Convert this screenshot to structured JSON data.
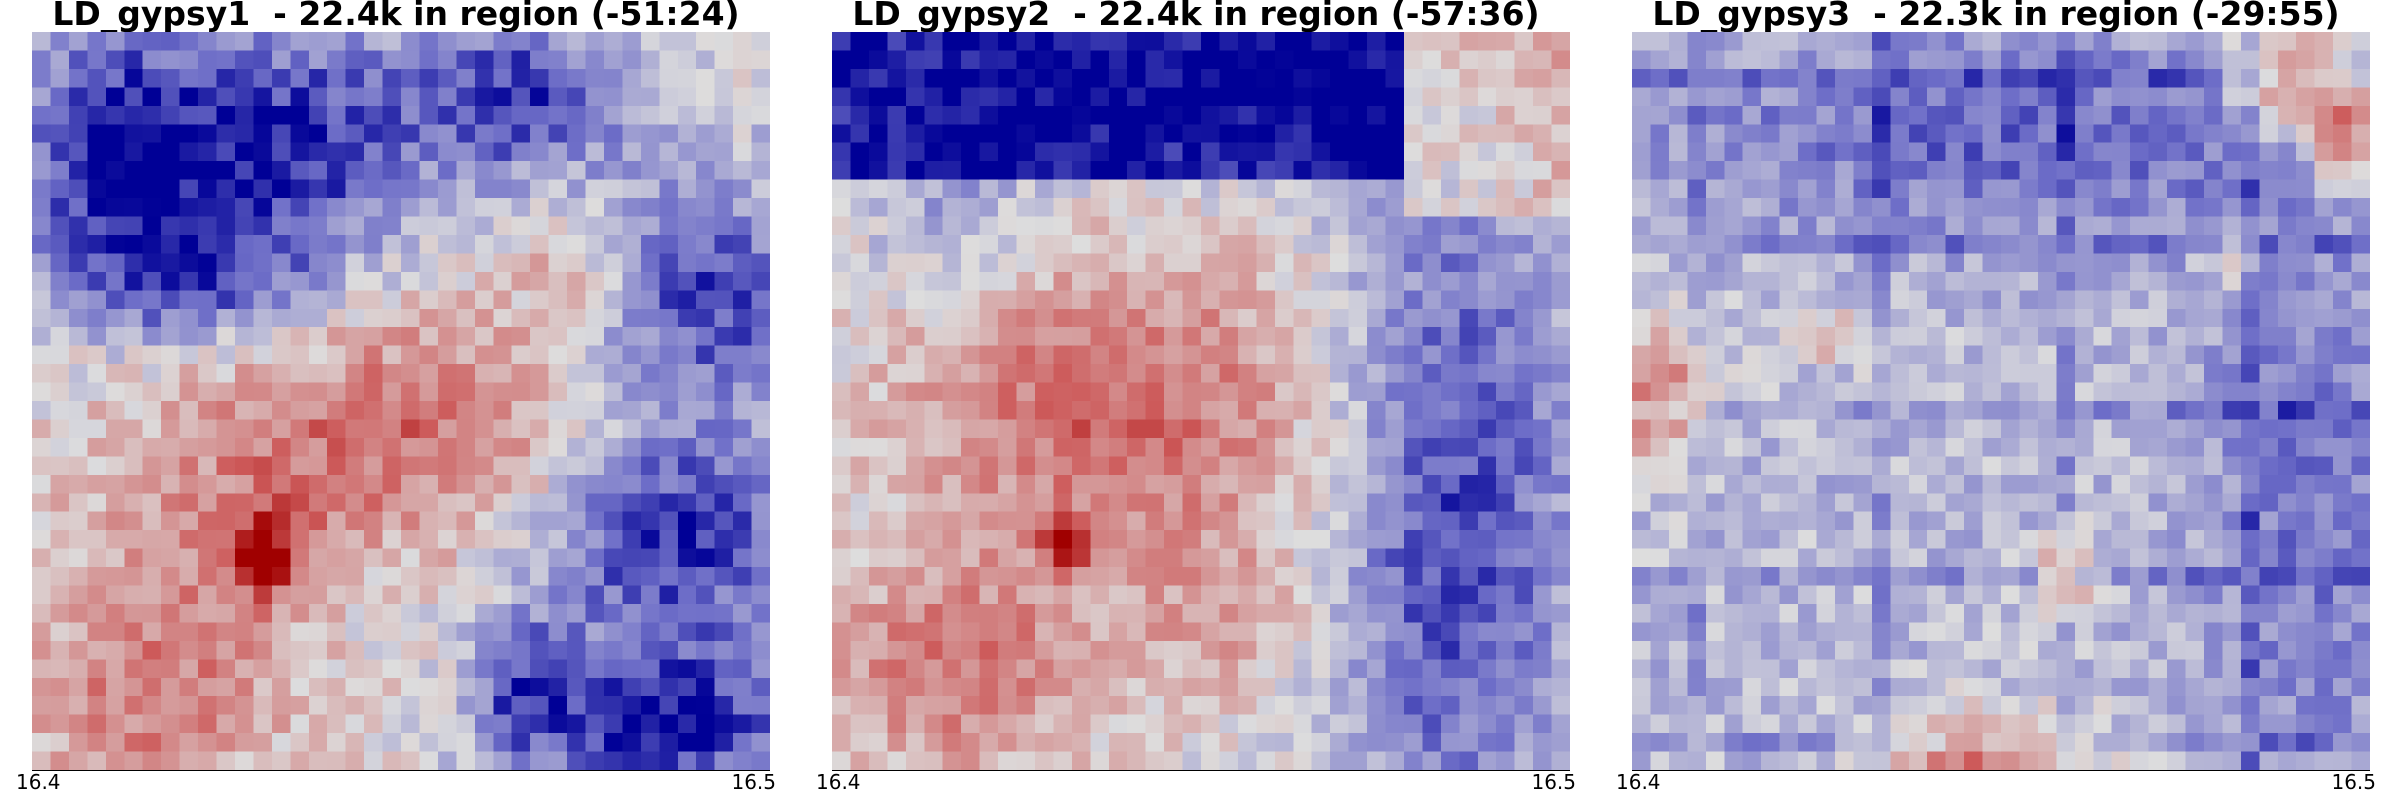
{
  "chart_data": [
    {
      "type": "heatmap",
      "title": "LD_gypsy1  - 22.4k in region (-51:24)",
      "xlabel": "",
      "ylabel": "",
      "x_ticks": [
        "16.4",
        "16.5"
      ],
      "colormap": "seismic-like (blue → light gray → red)",
      "grid_size": [
        40,
        40
      ],
      "dominant_patterns": "blue blocks in upper-left, upper-right, middle-right and bottom-right; diffuse red diagonal ridge from lower-left to upper-right; dark red hotspot near lower-left center"
    },
    {
      "type": "heatmap",
      "title": "LD_gypsy2  - 22.4k in region (-57:36)",
      "xlabel": "",
      "ylabel": "",
      "x_ticks": [
        "16.4",
        "16.5"
      ],
      "colormap": "seismic-like (blue → light gray → red)",
      "grid_size": [
        40,
        40
      ],
      "dominant_patterns": "solid blue band across top quarter; blue block on right side from mid to bottom; red square in top-right corner; broad red star-shaped region in center-left; dark red hotspot near lower-left center"
    },
    {
      "type": "heatmap",
      "title": "LD_gypsy3  - 22.3k in region (-29:55)",
      "xlabel": "",
      "ylabel": "",
      "x_ticks": [
        "16.4",
        "16.5"
      ],
      "colormap": "seismic-like (blue → light gray → red)",
      "grid_size": [
        40,
        40
      ],
      "dominant_patterns": "mostly pale blue with grid-like darker blue lines; dark red spots in top-right corner; red patch on left edge; red patch at bottom center"
    }
  ]
}
